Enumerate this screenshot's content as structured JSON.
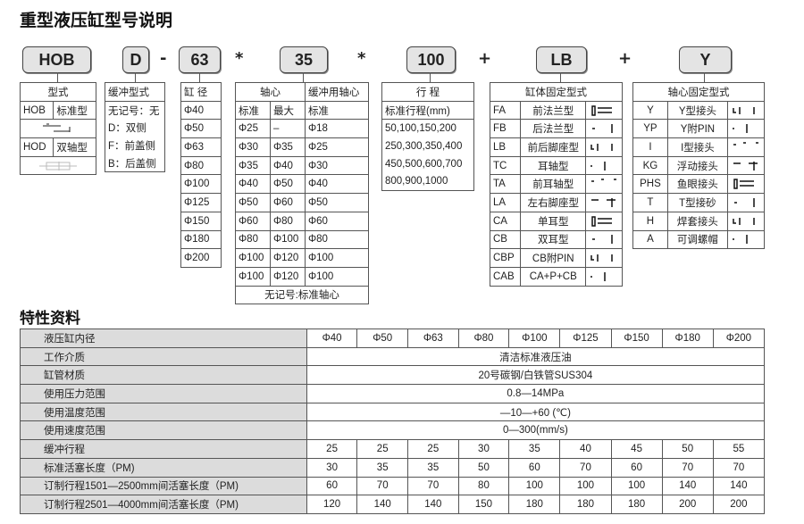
{
  "title": "重型液压缸型号说明",
  "codes": {
    "series": "HOB",
    "cushion": "D",
    "bore": "63",
    "rod": "35",
    "stroke": "100",
    "mount": "LB",
    "rod_end": "Y",
    "sep1": "-",
    "sep2": "*",
    "sep3": "*",
    "sep4": "+",
    "sep5": "+"
  },
  "type_table": {
    "header": "型式",
    "rows": [
      {
        "code": "HOB",
        "name": "标准型",
        "icon": "single-rod-cylinder-icon"
      },
      {
        "code": "HOD",
        "name": "双轴型",
        "icon": "double-rod-cylinder-icon"
      }
    ]
  },
  "cushion_table": {
    "header": "缓冲型式",
    "rows": [
      "无记号：无",
      "D：双侧",
      "F：前盖侧",
      "B：后盖侧"
    ]
  },
  "bore_table": {
    "header": "缸 径",
    "rows": [
      "Φ40",
      "Φ50",
      "Φ63",
      "Φ80",
      "Φ100",
      "Φ125",
      "Φ150",
      "Φ180",
      "Φ200"
    ]
  },
  "rod_table": {
    "header_rod": "轴心",
    "header_cushion_rod": "缓冲用轴心",
    "sub_standard": "标准",
    "sub_max": "最大",
    "sub_standard2": "标准",
    "rows": [
      [
        "Φ25",
        "–",
        "Φ18"
      ],
      [
        "Φ30",
        "Φ35",
        "Φ25"
      ],
      [
        "Φ35",
        "Φ40",
        "Φ30"
      ],
      [
        "Φ40",
        "Φ50",
        "Φ40"
      ],
      [
        "Φ50",
        "Φ60",
        "Φ50"
      ],
      [
        "Φ60",
        "Φ80",
        "Φ60"
      ],
      [
        "Φ80",
        "Φ100",
        "Φ80"
      ],
      [
        "Φ100",
        "Φ120",
        "Φ100"
      ],
      [
        "Φ100",
        "Φ120",
        "Φ100"
      ]
    ],
    "footer": "无记号:标准轴心"
  },
  "stroke_table": {
    "header": "行 程",
    "sub": "标准行程(mm)",
    "rows": [
      "50,100,150,200",
      "250,300,350,400",
      "450,500,600,700",
      "800,900,1000"
    ]
  },
  "mount_table": {
    "header": "缸体固定型式",
    "rows": [
      {
        "code": "FA",
        "name": "前法兰型",
        "icon": "front-flange-icon"
      },
      {
        "code": "FB",
        "name": "后法兰型",
        "icon": "rear-flange-icon"
      },
      {
        "code": "LB",
        "name": "前后脚座型",
        "icon": "foot-mount-icon"
      },
      {
        "code": "TC",
        "name": "耳轴型",
        "icon": "trunnion-icon"
      },
      {
        "code": "TA",
        "name": "前耳轴型",
        "icon": "front-trunnion-icon"
      },
      {
        "code": "LA",
        "name": "左右脚座型",
        "icon": "side-foot-icon"
      },
      {
        "code": "CA",
        "name": "单耳型",
        "icon": "single-clevis-icon"
      },
      {
        "code": "CB",
        "name": "双耳型",
        "icon": "double-clevis-icon"
      },
      {
        "code": "CBP",
        "name": "CB附PIN",
        "icon": "clevis-pin-icon"
      },
      {
        "code": "CAB",
        "name": "CA+P+CB",
        "icon": "clevis-combo-icon"
      }
    ]
  },
  "rod_end_table": {
    "header": "轴心固定型式",
    "rows": [
      {
        "code": "Y",
        "name": "Y型接头",
        "icon": "y-joint-icon"
      },
      {
        "code": "YP",
        "name": "Y附PIN",
        "icon": "y-pin-icon"
      },
      {
        "code": "I",
        "name": "I型接头",
        "icon": "i-joint-icon"
      },
      {
        "code": "KG",
        "name": "浮动接头",
        "icon": "floating-joint-icon"
      },
      {
        "code": "PHS",
        "name": "鱼眼接头",
        "icon": "rod-eye-icon"
      },
      {
        "code": "T",
        "name": "T型接砂",
        "icon": "t-joint-icon"
      },
      {
        "code": "H",
        "name": "焊套接头",
        "icon": "weld-joint-icon"
      },
      {
        "code": "A",
        "name": "可调螺帽",
        "icon": "adjust-nut-icon"
      }
    ]
  },
  "spec_title": "特性资料",
  "specs": {
    "bore_label": "液压缸内径",
    "bores": [
      "Φ40",
      "Φ50",
      "Φ63",
      "Φ80",
      "Φ100",
      "Φ125",
      "Φ150",
      "Φ180",
      "Φ200"
    ],
    "merged_rows": [
      {
        "label": "工作介质",
        "value": "清洁标准液压油"
      },
      {
        "label": "缸管材质",
        "value": "20号碳钢/白铁管SUS304"
      },
      {
        "label": "使用压力范围",
        "value": "0.8—14MPa"
      },
      {
        "label": "使用温度范围",
        "value": "—10—+60 (℃)"
      },
      {
        "label": "使用速度范围",
        "value": "0—300(mm/s)"
      }
    ],
    "value_rows": [
      {
        "label": "缓冲行程",
        "values": [
          "25",
          "25",
          "25",
          "30",
          "35",
          "40",
          "45",
          "50",
          "55"
        ]
      },
      {
        "label": "标准活塞长度（PM)",
        "values": [
          "30",
          "35",
          "35",
          "50",
          "60",
          "70",
          "60",
          "70",
          "70"
        ]
      },
      {
        "label": "订制行程1501—2500mm间活塞长度（PM)",
        "values": [
          "60",
          "70",
          "70",
          "80",
          "100",
          "100",
          "100",
          "140",
          "140"
        ]
      },
      {
        "label": "订制行程2501—4000mm间活塞长度（PM)",
        "values": [
          "120",
          "140",
          "140",
          "150",
          "180",
          "180",
          "180",
          "200",
          "200"
        ]
      }
    ]
  }
}
